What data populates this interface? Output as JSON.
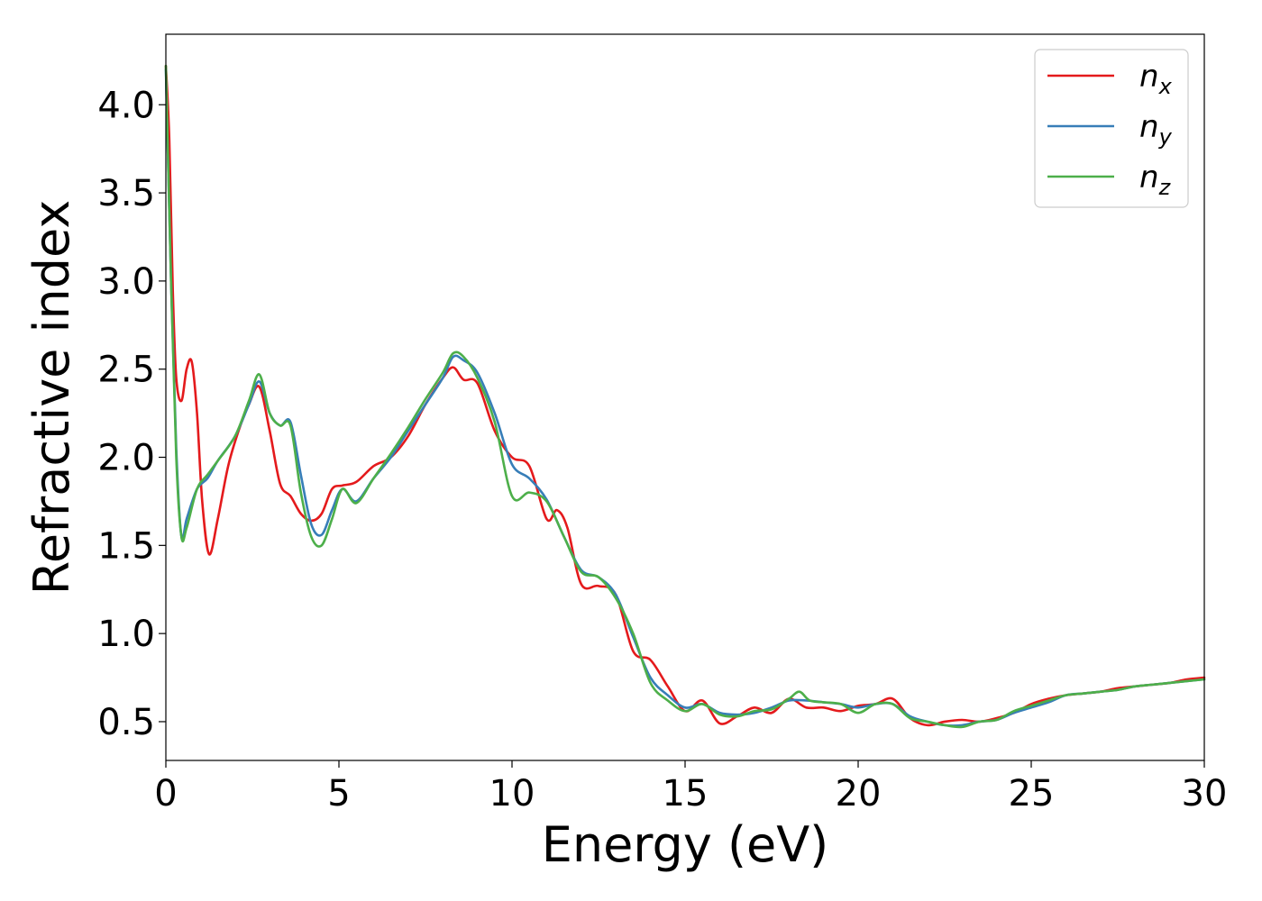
{
  "chart_data": {
    "type": "line",
    "title": "",
    "xlabel": "Energy (eV)",
    "ylabel": "Refractive index",
    "xlim": [
      0,
      30
    ],
    "ylim": [
      0.28,
      4.4
    ],
    "xticks": [
      0,
      5,
      10,
      15,
      20,
      25,
      30
    ],
    "xtick_labels": [
      "0",
      "5",
      "10",
      "15",
      "20",
      "25",
      "30"
    ],
    "yticks": [
      0.5,
      1.0,
      1.5,
      2.0,
      2.5,
      3.0,
      3.5,
      4.0
    ],
    "ytick_labels": [
      "0.5",
      "1.0",
      "1.5",
      "2.0",
      "2.5",
      "3.0",
      "3.5",
      "4.0"
    ],
    "grid": false,
    "legend_position": "top-right",
    "series": [
      {
        "name": "n",
        "subscript": "x",
        "color": "#e41a1c",
        "x": [
          0.0,
          0.1,
          0.2,
          0.3,
          0.45,
          0.6,
          0.75,
          0.9,
          1.05,
          1.25,
          1.5,
          1.8,
          2.1,
          2.4,
          2.7,
          3.0,
          3.3,
          3.6,
          3.9,
          4.2,
          4.5,
          4.8,
          5.1,
          5.5,
          6.0,
          6.5,
          7.0,
          7.5,
          8.0,
          8.3,
          8.6,
          9.0,
          9.5,
          10.0,
          10.5,
          11.0,
          11.3,
          11.6,
          12.0,
          12.5,
          13.0,
          13.5,
          14.0,
          14.5,
          15.0,
          15.5,
          16.0,
          16.5,
          17.0,
          17.5,
          18.0,
          18.5,
          19.0,
          19.5,
          20.0,
          20.5,
          21.0,
          21.5,
          22.0,
          22.5,
          23.0,
          23.5,
          24.0,
          24.5,
          25.0,
          25.5,
          26.0,
          26.5,
          27.0,
          27.5,
          28.0,
          28.5,
          29.0,
          29.5,
          30.0
        ],
        "y": [
          4.22,
          3.8,
          2.95,
          2.45,
          2.32,
          2.5,
          2.54,
          2.25,
          1.75,
          1.45,
          1.65,
          1.95,
          2.15,
          2.3,
          2.4,
          2.15,
          1.85,
          1.78,
          1.68,
          1.64,
          1.68,
          1.82,
          1.84,
          1.86,
          1.95,
          2.0,
          2.12,
          2.3,
          2.45,
          2.51,
          2.44,
          2.42,
          2.15,
          2.0,
          1.95,
          1.65,
          1.7,
          1.6,
          1.28,
          1.27,
          1.22,
          0.9,
          0.85,
          0.7,
          0.56,
          0.62,
          0.49,
          0.53,
          0.58,
          0.55,
          0.63,
          0.58,
          0.58,
          0.56,
          0.59,
          0.6,
          0.63,
          0.52,
          0.48,
          0.5,
          0.51,
          0.5,
          0.52,
          0.55,
          0.6,
          0.63,
          0.65,
          0.66,
          0.67,
          0.69,
          0.7,
          0.71,
          0.72,
          0.74,
          0.75
        ]
      },
      {
        "name": "n",
        "subscript": "y",
        "color": "#377eb8",
        "x": [
          0.0,
          0.15,
          0.3,
          0.45,
          0.6,
          0.9,
          1.2,
          1.5,
          2.0,
          2.4,
          2.7,
          3.0,
          3.3,
          3.6,
          3.9,
          4.2,
          4.5,
          4.8,
          5.1,
          5.5,
          6.0,
          6.5,
          7.0,
          7.5,
          8.0,
          8.3,
          8.6,
          9.0,
          9.5,
          10.0,
          10.5,
          11.0,
          11.5,
          12.0,
          12.5,
          13.0,
          13.5,
          14.0,
          14.5,
          15.0,
          15.5,
          16.0,
          16.5,
          17.0,
          17.5,
          18.0,
          18.5,
          19.0,
          19.5,
          20.0,
          20.5,
          21.0,
          21.5,
          22.0,
          22.5,
          23.0,
          23.5,
          24.0,
          24.5,
          25.0,
          25.5,
          26.0,
          26.5,
          27.0,
          27.5,
          28.0,
          28.5,
          29.0,
          29.5,
          30.0
        ],
        "y": [
          4.2,
          3.0,
          2.05,
          1.55,
          1.65,
          1.82,
          1.88,
          1.98,
          2.12,
          2.3,
          2.43,
          2.25,
          2.18,
          2.2,
          1.9,
          1.62,
          1.56,
          1.7,
          1.82,
          1.75,
          1.88,
          2.0,
          2.15,
          2.3,
          2.45,
          2.57,
          2.55,
          2.48,
          2.25,
          1.96,
          1.88,
          1.76,
          1.55,
          1.36,
          1.32,
          1.22,
          0.98,
          0.75,
          0.65,
          0.58,
          0.6,
          0.55,
          0.54,
          0.55,
          0.58,
          0.62,
          0.62,
          0.61,
          0.6,
          0.58,
          0.6,
          0.6,
          0.53,
          0.5,
          0.48,
          0.48,
          0.5,
          0.51,
          0.55,
          0.58,
          0.61,
          0.65,
          0.66,
          0.67,
          0.68,
          0.7,
          0.71,
          0.72,
          0.73,
          0.74
        ]
      },
      {
        "name": "n",
        "subscript": "z",
        "color": "#4daf4a",
        "x": [
          0.0,
          0.15,
          0.3,
          0.45,
          0.6,
          0.9,
          1.2,
          1.5,
          2.0,
          2.4,
          2.7,
          3.0,
          3.3,
          3.6,
          3.9,
          4.2,
          4.5,
          4.8,
          5.1,
          5.5,
          6.0,
          6.5,
          7.0,
          7.5,
          8.0,
          8.3,
          8.6,
          9.0,
          9.5,
          10.0,
          10.5,
          11.0,
          11.5,
          12.0,
          12.5,
          13.0,
          13.5,
          14.0,
          14.5,
          15.0,
          15.5,
          16.0,
          16.5,
          17.0,
          17.5,
          18.0,
          18.3,
          18.6,
          19.0,
          19.5,
          20.0,
          20.5,
          21.0,
          21.5,
          22.0,
          22.5,
          23.0,
          23.5,
          24.0,
          24.5,
          25.0,
          25.5,
          26.0,
          26.5,
          27.0,
          27.5,
          28.0,
          28.5,
          29.0,
          29.5,
          30.0
        ],
        "y": [
          4.22,
          3.0,
          2.0,
          1.55,
          1.6,
          1.82,
          1.9,
          1.98,
          2.12,
          2.32,
          2.47,
          2.25,
          2.18,
          2.18,
          1.8,
          1.55,
          1.5,
          1.65,
          1.82,
          1.74,
          1.88,
          2.02,
          2.17,
          2.33,
          2.48,
          2.59,
          2.57,
          2.45,
          2.2,
          1.78,
          1.8,
          1.75,
          1.55,
          1.35,
          1.32,
          1.2,
          1.0,
          0.72,
          0.62,
          0.56,
          0.6,
          0.54,
          0.53,
          0.56,
          0.57,
          0.63,
          0.67,
          0.62,
          0.61,
          0.6,
          0.55,
          0.6,
          0.6,
          0.52,
          0.5,
          0.48,
          0.47,
          0.5,
          0.51,
          0.56,
          0.59,
          0.62,
          0.65,
          0.66,
          0.67,
          0.68,
          0.7,
          0.71,
          0.72,
          0.73,
          0.74
        ]
      }
    ]
  }
}
